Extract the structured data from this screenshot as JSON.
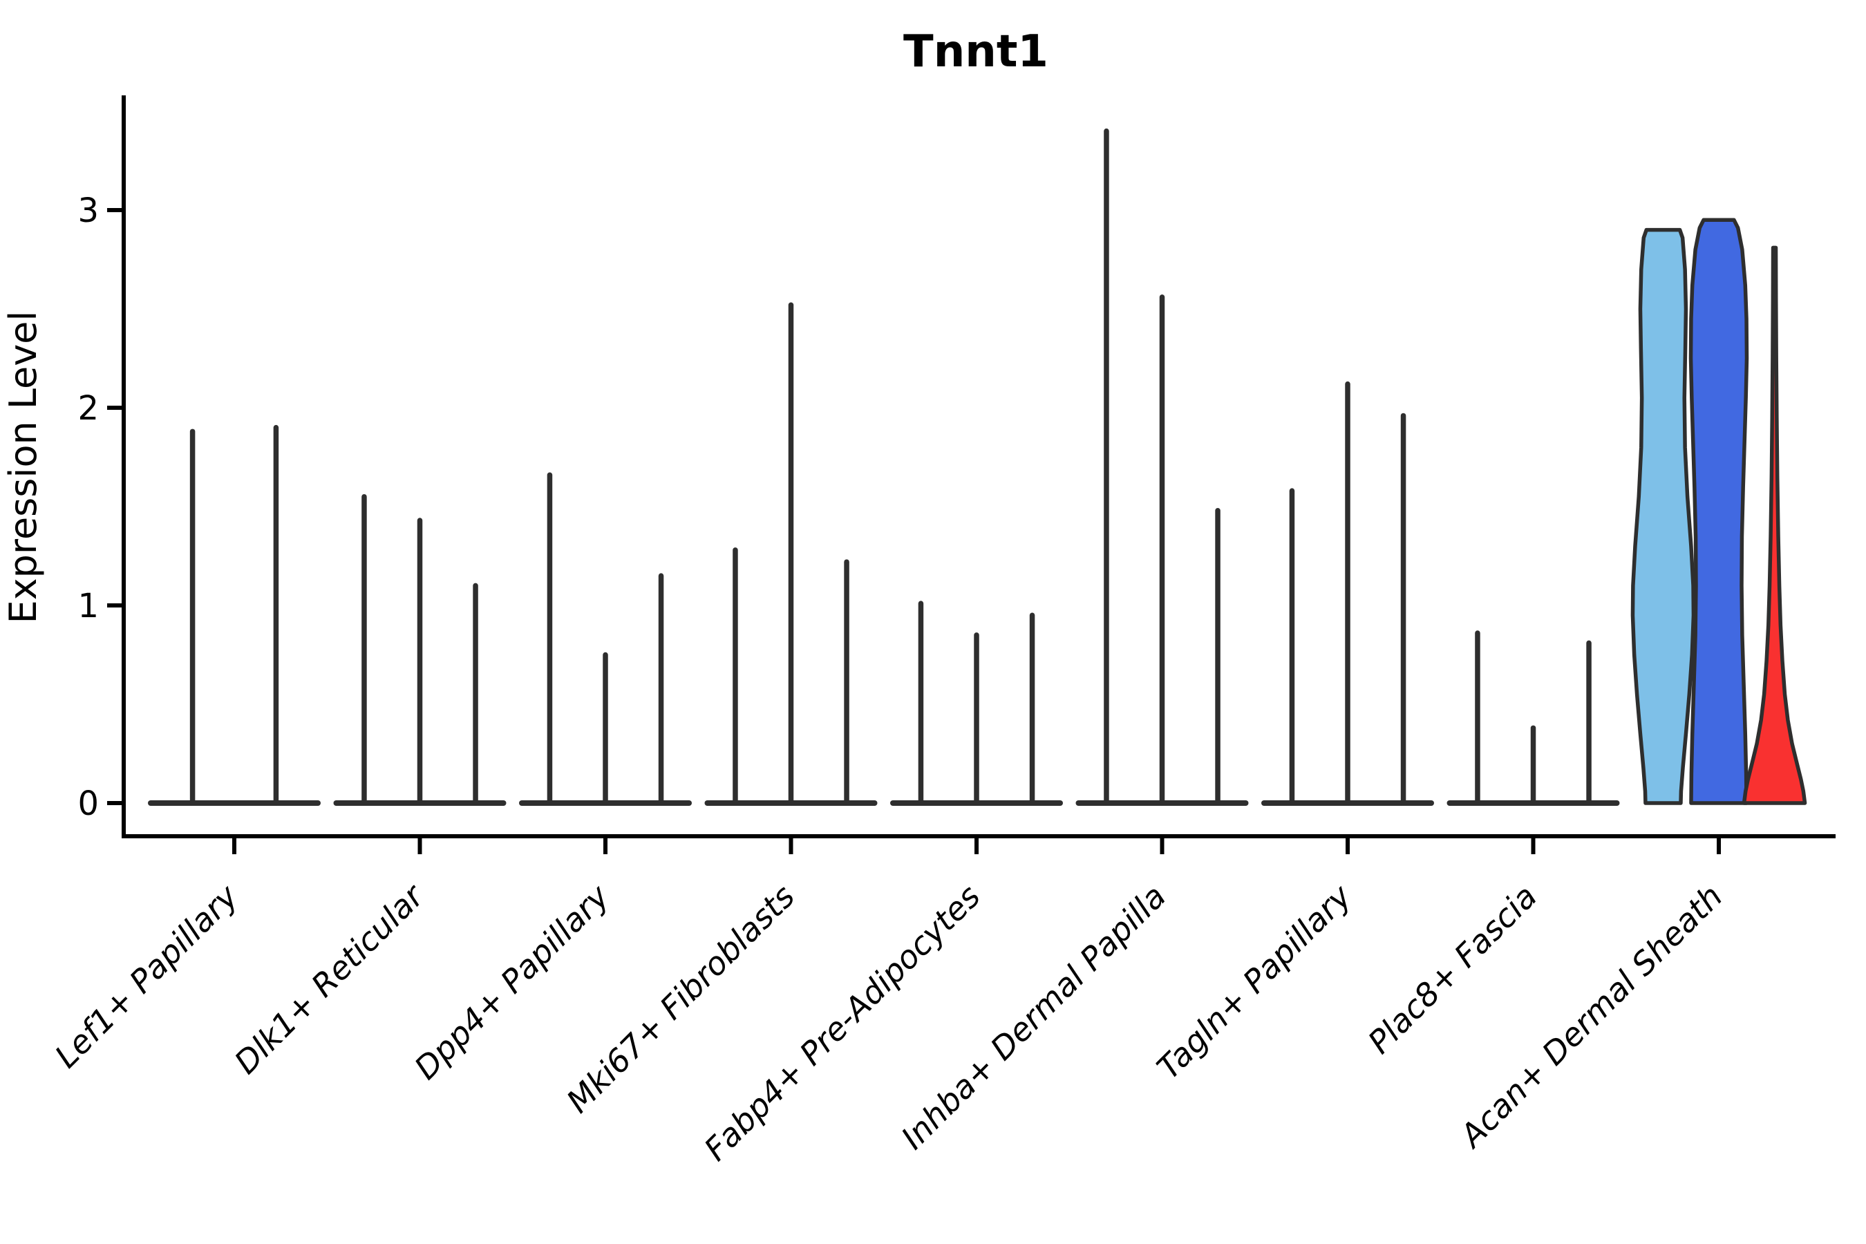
{
  "chart_data": {
    "type": "violin",
    "title": "Tnnt1",
    "ylabel": "Expression Level",
    "xlabel": "",
    "yticks": [
      0,
      1,
      2,
      3
    ],
    "ylim": [
      -0.17,
      3.57
    ],
    "grid": false,
    "legend": "none",
    "background": "#ffffff",
    "colors": {
      "spike": "#2E2E2E",
      "outline": "#2E2E2E",
      "axis": "#000000",
      "violin_lightblue": "#7EC0E8",
      "violin_blue": "#4169E1",
      "violin_red": "#F93130"
    },
    "categories": [
      "Lef1+ Papillary",
      "Dlk1+ Reticular",
      "Dpp4+ Papillary",
      "Mki67+ Fibroblasts",
      "Fabp4+ Pre-Adipocytes",
      "Inhba+ Dermal Papilla",
      "Tagln+ Papillary",
      "Plac8+ Fascia",
      "Acan+ Dermal Sheath"
    ],
    "groups": [
      {
        "category": "Lef1+ Papillary",
        "violins": [
          {
            "kind": "spike",
            "offset": -0.225,
            "peak": 1.88
          },
          {
            "kind": "spike",
            "offset": 0.225,
            "peak": 1.9
          }
        ]
      },
      {
        "category": "Dlk1+ Reticular",
        "violins": [
          {
            "kind": "spike",
            "offset": -0.3,
            "peak": 1.55
          },
          {
            "kind": "spike",
            "offset": 0,
            "peak": 1.43
          },
          {
            "kind": "spike",
            "offset": 0.3,
            "peak": 1.1
          }
        ]
      },
      {
        "category": "Dpp4+ Papillary",
        "violins": [
          {
            "kind": "spike",
            "offset": -0.3,
            "peak": 1.66
          },
          {
            "kind": "spike",
            "offset": 0,
            "peak": 0.75
          },
          {
            "kind": "spike",
            "offset": 0.3,
            "peak": 1.15
          }
        ]
      },
      {
        "category": "Mki67+ Fibroblasts",
        "violins": [
          {
            "kind": "spike",
            "offset": -0.3,
            "peak": 1.28
          },
          {
            "kind": "spike",
            "offset": 0,
            "peak": 2.52
          },
          {
            "kind": "spike",
            "offset": 0.3,
            "peak": 1.22
          }
        ]
      },
      {
        "category": "Fabp4+ Pre-Adipocytes",
        "violins": [
          {
            "kind": "spike",
            "offset": -0.3,
            "peak": 1.01
          },
          {
            "kind": "spike",
            "offset": 0,
            "peak": 0.85
          },
          {
            "kind": "spike",
            "offset": 0.3,
            "peak": 0.95
          }
        ]
      },
      {
        "category": "Inhba+ Dermal Papilla",
        "violins": [
          {
            "kind": "spike",
            "offset": -0.3,
            "peak": 3.4
          },
          {
            "kind": "spike",
            "offset": 0,
            "peak": 2.56
          },
          {
            "kind": "spike",
            "offset": 0.3,
            "peak": 1.48
          }
        ]
      },
      {
        "category": "Tagln+ Papillary",
        "violins": [
          {
            "kind": "spike",
            "offset": -0.3,
            "peak": 1.58
          },
          {
            "kind": "spike",
            "offset": 0,
            "peak": 2.12
          },
          {
            "kind": "spike",
            "offset": 0.3,
            "peak": 1.96
          }
        ]
      },
      {
        "category": "Plac8+ Fascia",
        "violins": [
          {
            "kind": "spike",
            "offset": -0.3,
            "peak": 0.86
          },
          {
            "kind": "spike",
            "offset": 0,
            "peak": 0.38
          },
          {
            "kind": "spike",
            "offset": 0.3,
            "peak": 0.81
          }
        ]
      },
      {
        "category": "Acan+ Dermal Sheath",
        "violins": [
          {
            "kind": "violin",
            "offset": -0.3,
            "peak": 2.9,
            "color": "#7EC0E8",
            "color_name": "lightblue",
            "profile": [
              [
                2.9,
                0.55
              ],
              [
                2.86,
                0.64
              ],
              [
                2.7,
                0.72
              ],
              [
                2.5,
                0.75
              ],
              [
                2.3,
                0.73
              ],
              [
                2.05,
                0.7
              ],
              [
                1.8,
                0.72
              ],
              [
                1.55,
                0.8
              ],
              [
                1.3,
                0.92
              ],
              [
                1.1,
                0.99
              ],
              [
                0.95,
                1.0
              ],
              [
                0.75,
                0.95
              ],
              [
                0.55,
                0.86
              ],
              [
                0.35,
                0.75
              ],
              [
                0.18,
                0.65
              ],
              [
                0.06,
                0.59
              ],
              [
                0.0,
                0.58
              ]
            ]
          },
          {
            "kind": "violin",
            "offset": 0,
            "peak": 2.95,
            "color": "#4169E1",
            "color_name": "blue",
            "profile": [
              [
                2.95,
                0.5
              ],
              [
                2.91,
                0.63
              ],
              [
                2.8,
                0.77
              ],
              [
                2.62,
                0.87
              ],
              [
                2.45,
                0.91
              ],
              [
                2.25,
                0.92
              ],
              [
                2.05,
                0.89
              ],
              [
                1.85,
                0.85
              ],
              [
                1.6,
                0.8
              ],
              [
                1.35,
                0.76
              ],
              [
                1.1,
                0.75
              ],
              [
                0.85,
                0.77
              ],
              [
                0.6,
                0.82
              ],
              [
                0.35,
                0.87
              ],
              [
                0.15,
                0.9
              ],
              [
                0.0,
                0.91
              ]
            ]
          },
          {
            "kind": "violin",
            "offset": 0.3,
            "peak": 2.81,
            "color": "#F93130",
            "color_name": "red",
            "profile": [
              [
                2.81,
                0.045
              ],
              [
                2.55,
                0.05
              ],
              [
                2.25,
                0.06
              ],
              [
                1.95,
                0.075
              ],
              [
                1.65,
                0.095
              ],
              [
                1.35,
                0.125
              ],
              [
                1.1,
                0.16
              ],
              [
                0.9,
                0.2
              ],
              [
                0.72,
                0.26
              ],
              [
                0.55,
                0.34
              ],
              [
                0.42,
                0.44
              ],
              [
                0.3,
                0.58
              ],
              [
                0.2,
                0.74
              ],
              [
                0.12,
                0.87
              ],
              [
                0.06,
                0.95
              ],
              [
                0.0,
                1.0
              ]
            ]
          }
        ]
      }
    ]
  }
}
